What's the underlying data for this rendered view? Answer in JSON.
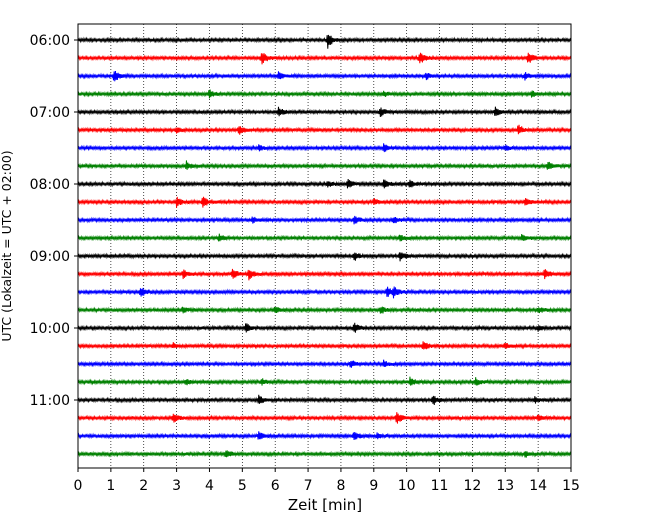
{
  "chart_data": {
    "type": "line",
    "subtype": "helicorder",
    "title": "",
    "xlabel": "Zeit  [min]",
    "ylabel": "UTC (Lokalzeit = UTC + 02:00)",
    "xlim": [
      0,
      15
    ],
    "x_ticks": [
      "0",
      "1",
      "2",
      "3",
      "4",
      "5",
      "6",
      "7",
      "8",
      "9",
      "10",
      "11",
      "12",
      "13",
      "14",
      "15"
    ],
    "grid": "vertical dotted",
    "legend": "none",
    "trace_interval_minutes": 15,
    "color_cycle": [
      "#000000",
      "#ff0000",
      "#0000ff",
      "#008000"
    ],
    "y_ticks": [
      {
        "label": "06:00",
        "row": 0
      },
      {
        "label": "07:00",
        "row": 4
      },
      {
        "label": "08:00",
        "row": 8
      },
      {
        "label": "09:00",
        "row": 12
      },
      {
        "label": "10:00",
        "row": 16
      },
      {
        "label": "11:00",
        "row": 20
      }
    ],
    "rows": [
      {
        "start": "06:00",
        "events": [
          [
            7.6,
            1.6
          ]
        ]
      },
      {
        "start": "06:15",
        "events": [
          [
            5.6,
            1.3
          ],
          [
            10.4,
            1.2
          ],
          [
            13.7,
            1.1
          ]
        ]
      },
      {
        "start": "06:30",
        "events": [
          [
            1.1,
            1.1
          ],
          [
            6.1,
            0.7
          ],
          [
            10.6,
            0.6
          ],
          [
            13.6,
            0.7
          ]
        ]
      },
      {
        "start": "06:45",
        "events": [
          [
            4.0,
            0.8
          ],
          [
            9.3,
            0.5
          ],
          [
            13.8,
            0.6
          ]
        ]
      },
      {
        "start": "07:00",
        "events": [
          [
            6.1,
            1.0
          ],
          [
            9.2,
            0.9
          ],
          [
            12.7,
            0.9
          ]
        ]
      },
      {
        "start": "07:15",
        "events": [
          [
            3.0,
            0.6
          ],
          [
            4.9,
            0.9
          ],
          [
            13.4,
            1.0
          ]
        ]
      },
      {
        "start": "07:30",
        "events": [
          [
            5.5,
            0.6
          ],
          [
            9.3,
            0.8
          ],
          [
            13.0,
            0.5
          ]
        ]
      },
      {
        "start": "07:45",
        "events": [
          [
            3.3,
            0.8
          ],
          [
            14.3,
            0.9
          ]
        ]
      },
      {
        "start": "08:00",
        "events": [
          [
            7.6,
            0.6
          ],
          [
            8.2,
            1.0
          ],
          [
            9.3,
            1.0
          ],
          [
            10.1,
            0.9
          ]
        ]
      },
      {
        "start": "08:15",
        "events": [
          [
            3.0,
            0.9
          ],
          [
            3.8,
            1.0
          ],
          [
            9.0,
            0.6
          ],
          [
            13.6,
            0.8
          ]
        ]
      },
      {
        "start": "08:30",
        "events": [
          [
            5.3,
            0.6
          ],
          [
            8.4,
            0.8
          ],
          [
            9.6,
            0.7
          ]
        ]
      },
      {
        "start": "08:45",
        "events": [
          [
            4.3,
            0.7
          ],
          [
            9.8,
            0.6
          ],
          [
            13.5,
            0.6
          ]
        ]
      },
      {
        "start": "09:00",
        "events": [
          [
            8.4,
            0.9
          ],
          [
            9.8,
            1.0
          ]
        ]
      },
      {
        "start": "09:15",
        "events": [
          [
            3.2,
            0.8
          ],
          [
            4.7,
            1.1
          ],
          [
            5.2,
            1.2
          ],
          [
            14.2,
            0.9
          ]
        ]
      },
      {
        "start": "09:30",
        "events": [
          [
            1.9,
            1.0
          ],
          [
            9.4,
            1.1
          ],
          [
            9.6,
            1.0
          ]
        ]
      },
      {
        "start": "09:45",
        "events": [
          [
            3.2,
            0.6
          ],
          [
            6.0,
            0.6
          ],
          [
            9.2,
            0.7
          ],
          [
            14.0,
            0.6
          ]
        ]
      },
      {
        "start": "10:00",
        "events": [
          [
            5.1,
            0.9
          ],
          [
            8.4,
            1.0
          ],
          [
            14.0,
            0.5
          ]
        ]
      },
      {
        "start": "10:15",
        "events": [
          [
            2.9,
            0.5
          ],
          [
            10.5,
            1.0
          ],
          [
            13.0,
            0.5
          ]
        ]
      },
      {
        "start": "10:30",
        "events": [
          [
            8.3,
            0.7
          ],
          [
            9.3,
            0.6
          ]
        ]
      },
      {
        "start": "10:45",
        "events": [
          [
            3.3,
            0.5
          ],
          [
            5.6,
            0.5
          ],
          [
            10.1,
            0.9
          ],
          [
            12.1,
            0.7
          ]
        ]
      },
      {
        "start": "11:00",
        "events": [
          [
            5.5,
            0.8
          ],
          [
            10.8,
            1.0
          ],
          [
            13.9,
            0.5
          ]
        ]
      },
      {
        "start": "11:15",
        "events": [
          [
            2.9,
            1.0
          ],
          [
            9.7,
            1.1
          ],
          [
            14.0,
            0.6
          ]
        ]
      },
      {
        "start": "11:30",
        "events": [
          [
            5.5,
            0.8
          ],
          [
            8.4,
            0.9
          ],
          [
            9.1,
            0.6
          ]
        ]
      },
      {
        "start": "11:45",
        "events": [
          [
            4.5,
            0.8
          ],
          [
            13.6,
            0.6
          ]
        ]
      }
    ]
  }
}
